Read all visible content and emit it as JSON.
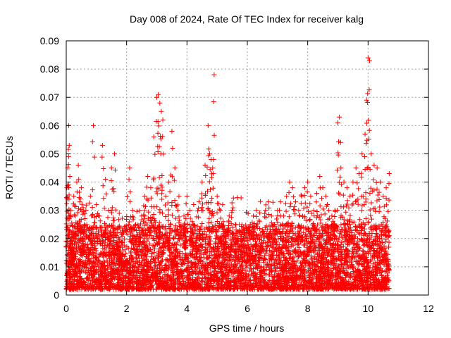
{
  "chart_data": {
    "type": "scatter",
    "title": "Day 008 of 2024, Rate Of TEC Index for receiver kalg",
    "xlabel": "GPS time / hours",
    "ylabel": "ROTI / TECUs",
    "xlim": [
      0,
      12
    ],
    "ylim": [
      0,
      0.09
    ],
    "x_ticks": [
      0,
      2,
      4,
      6,
      8,
      10,
      12
    ],
    "x_tick_labels": [
      "0",
      "2",
      "4",
      "6",
      "8",
      "10",
      "12"
    ],
    "y_ticks": [
      0,
      0.01,
      0.02,
      0.03,
      0.04,
      0.05,
      0.06,
      0.07,
      0.08,
      0.09
    ],
    "y_tick_labels": [
      "0",
      "0.01",
      "0.02",
      "0.03",
      "0.04",
      "0.05",
      "0.06",
      "0.07",
      "0.08",
      "0.09"
    ],
    "grid": true,
    "marker": "+",
    "marker_color": "#ff0000",
    "series": [
      {
        "name": "ROTI",
        "x": [
          0.02,
          0.05,
          0.08,
          0.1,
          0.12,
          0.15,
          0.18,
          0.2,
          0.25,
          0.3,
          0.35,
          0.4,
          0.45,
          0.5,
          0.55,
          0.6,
          0.65,
          0.7,
          0.8,
          0.9,
          1.0,
          1.1,
          1.2,
          1.3,
          1.4,
          1.5,
          1.6,
          1.7,
          1.8,
          1.9,
          2.0,
          2.1,
          2.2,
          2.3,
          2.4,
          2.5,
          2.6,
          2.7,
          2.8,
          2.9,
          3.0,
          3.05,
          3.1,
          3.15,
          3.2,
          3.3,
          3.4,
          3.5,
          3.6,
          3.7,
          3.8,
          3.9,
          4.0,
          4.1,
          4.2,
          4.3,
          4.4,
          4.5,
          4.6,
          4.7,
          4.75,
          4.8,
          4.85,
          4.9,
          5.0,
          5.1,
          5.2,
          5.3,
          5.4,
          5.5,
          5.6,
          5.7,
          5.8,
          5.9,
          6.0,
          6.1,
          6.2,
          6.3,
          6.4,
          6.5,
          6.6,
          6.7,
          6.8,
          6.9,
          7.0,
          7.1,
          7.2,
          7.3,
          7.4,
          7.5,
          7.6,
          7.7,
          7.8,
          7.9,
          8.0,
          8.1,
          8.2,
          8.3,
          8.4,
          8.5,
          8.6,
          8.7,
          8.8,
          8.9,
          9.0,
          9.05,
          9.1,
          9.2,
          9.3,
          9.4,
          9.5,
          9.6,
          9.7,
          9.8,
          9.9,
          9.95,
          10.0,
          10.05,
          10.1,
          10.2,
          10.3,
          10.4,
          10.5,
          10.6,
          10.7
        ],
        "y": [
          0.038,
          0.045,
          0.06,
          0.053,
          0.042,
          0.03,
          0.022,
          0.015,
          0.035,
          0.028,
          0.04,
          0.046,
          0.033,
          0.038,
          0.02,
          0.025,
          0.03,
          0.018,
          0.035,
          0.06,
          0.032,
          0.028,
          0.053,
          0.041,
          0.03,
          0.045,
          0.05,
          0.022,
          0.015,
          0.01,
          0.012,
          0.045,
          0.03,
          0.025,
          0.02,
          0.028,
          0.035,
          0.042,
          0.038,
          0.056,
          0.07,
          0.071,
          0.068,
          0.065,
          0.062,
          0.035,
          0.04,
          0.058,
          0.045,
          0.03,
          0.022,
          0.028,
          0.035,
          0.03,
          0.025,
          0.02,
          0.033,
          0.04,
          0.046,
          0.06,
          0.05,
          0.048,
          0.045,
          0.078,
          0.035,
          0.03,
          0.026,
          0.022,
          0.028,
          0.03,
          0.025,
          0.02,
          0.018,
          0.022,
          0.02,
          0.025,
          0.028,
          0.03,
          0.026,
          0.022,
          0.03,
          0.033,
          0.028,
          0.025,
          0.03,
          0.033,
          0.028,
          0.035,
          0.04,
          0.038,
          0.033,
          0.03,
          0.035,
          0.038,
          0.04,
          0.035,
          0.03,
          0.036,
          0.042,
          0.038,
          0.035,
          0.03,
          0.028,
          0.03,
          0.061,
          0.063,
          0.045,
          0.04,
          0.038,
          0.035,
          0.04,
          0.045,
          0.043,
          0.05,
          0.057,
          0.069,
          0.084,
          0.083,
          0.05,
          0.046,
          0.045,
          0.04,
          0.035,
          0.038,
          0.043
        ]
      }
    ],
    "background_noise": {
      "x_range": [
        0,
        10.7
      ],
      "y_base_range": [
        0.002,
        0.025
      ],
      "count": 5200
    }
  }
}
